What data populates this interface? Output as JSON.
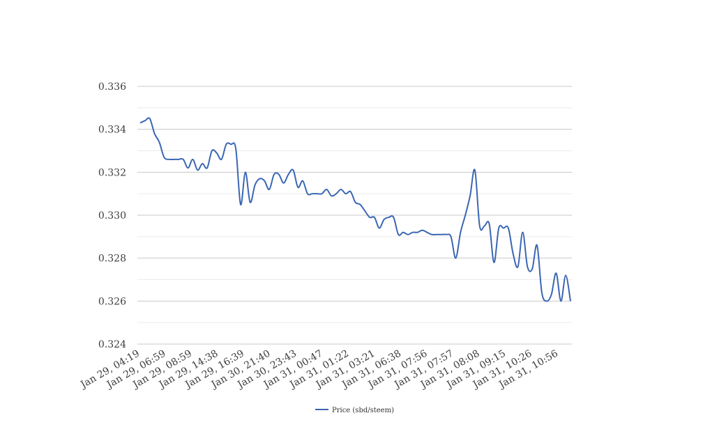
{
  "colors": {
    "line": "#3a66b3",
    "grid_major": "#c8c8c8",
    "grid_minor": "#ebebeb",
    "text": "#3c3c3c"
  },
  "chart_data": {
    "type": "line",
    "title": "",
    "xlabel": "",
    "ylabel": "",
    "ylim": [
      0.324,
      0.336
    ],
    "grid": true,
    "minor_grid": true,
    "legend_position": "bottom-center",
    "yticks": [
      "0.324",
      "0.326",
      "0.328",
      "0.330",
      "0.332",
      "0.334",
      "0.336"
    ],
    "xticks": [
      "Jan 29, 04:19",
      "Jan 29, 06:59",
      "Jan 29, 08:59",
      "Jan 29, 14:38",
      "Jan 29, 16:39",
      "Jan 30, 21:40",
      "Jan 30, 23:43",
      "Jan 31, 00:47",
      "Jan 31, 01:22",
      "Jan 31, 03:21",
      "Jan 31, 06:38",
      "Jan 31, 07:56",
      "Jan 31, 07:57",
      "Jan 31, 08:08",
      "Jan 31, 09:15",
      "Jan 31, 10:26",
      "Jan 31, 10:56"
    ],
    "series": [
      {
        "name": "Price (sbd/steem)",
        "values": [
          0.3343,
          0.3344,
          0.3345,
          0.3338,
          0.3334,
          0.3327,
          0.3326,
          0.3326,
          0.3326,
          0.3326,
          0.3322,
          0.3326,
          0.3321,
          0.3324,
          0.3322,
          0.333,
          0.3329,
          0.3326,
          0.3333,
          0.3333,
          0.3331,
          0.3305,
          0.332,
          0.3306,
          0.3314,
          0.3317,
          0.3316,
          0.3312,
          0.3319,
          0.3319,
          0.3315,
          0.3319,
          0.3321,
          0.3313,
          0.3316,
          0.331,
          0.331,
          0.331,
          0.331,
          0.3312,
          0.3309,
          0.331,
          0.3312,
          0.331,
          0.3311,
          0.3306,
          0.3305,
          0.3302,
          0.3299,
          0.3299,
          0.3294,
          0.3298,
          0.3299,
          0.3299,
          0.3291,
          0.3292,
          0.3291,
          0.3292,
          0.3292,
          0.3293,
          0.3292,
          0.3291,
          0.3291,
          0.3291,
          0.3291,
          0.329,
          0.328,
          0.3292,
          0.33,
          0.3309,
          0.3321,
          0.3295,
          0.3295,
          0.3296,
          0.3278,
          0.3294,
          0.3294,
          0.3294,
          0.3282,
          0.3276,
          0.3292,
          0.3276,
          0.3275,
          0.3286,
          0.3264,
          0.326,
          0.3263,
          0.3273,
          0.326,
          0.3272,
          0.326
        ]
      }
    ]
  }
}
